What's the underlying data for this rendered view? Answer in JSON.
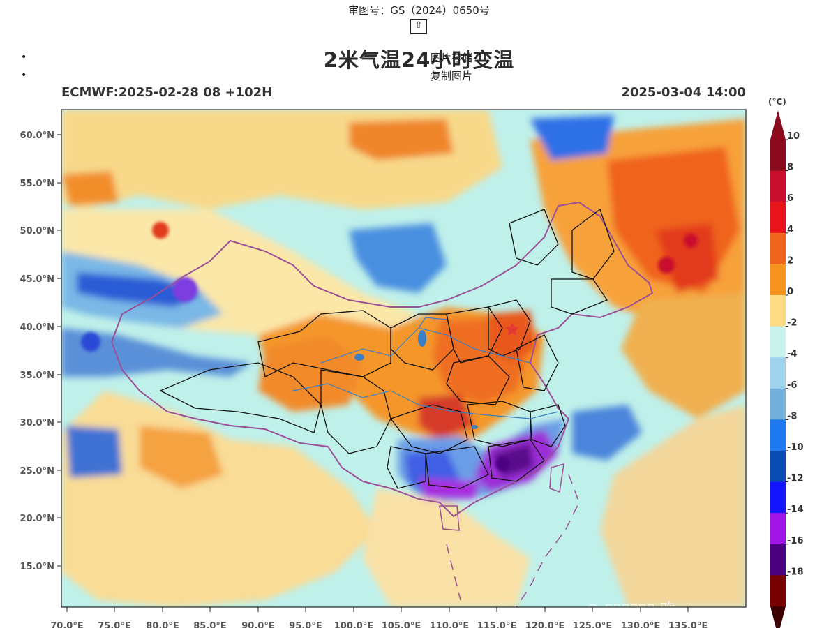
{
  "header": {
    "approval_number": "审图号：GS（2024）0650号",
    "up_icon_glyph": "⇧"
  },
  "menu": {
    "items": [
      {
        "label": "图片存储"
      },
      {
        "label": "复制图片"
      }
    ]
  },
  "map": {
    "title": "2米气温24小时变温",
    "model_run": "ECMWF:2025-02-28 08 +102H",
    "valid_time": "2025-03-04 14:00",
    "lat_labels": [
      "60.0°N",
      "55.0°N",
      "50.0°N",
      "45.0°N",
      "40.0°N",
      "35.0°N",
      "30.0°N",
      "25.0°N",
      "20.0°N",
      "15.0°N"
    ],
    "lon_labels": [
      "70.0°E",
      "75.0°E",
      "80.0°E",
      "85.0°E",
      "90.0°E",
      "95.0°E",
      "100.0°E",
      "105.0°E",
      "110.0°E",
      "115.0°E",
      "120.0°E",
      "125.0°E",
      "130.0°E",
      "135.0°E"
    ],
    "marker_icon": "star-icon",
    "marker_color": "#e53935"
  },
  "colorbar": {
    "unit": "(°C)",
    "bins": [
      {
        "color": "#8b0a1e"
      },
      {
        "color": "#c8102e"
      },
      {
        "color": "#e8141c"
      },
      {
        "color": "#f0641e"
      },
      {
        "color": "#f7941d"
      },
      {
        "color": "#fcdc82"
      },
      {
        "color": "#c9f3ea"
      },
      {
        "color": "#9fd3ee"
      },
      {
        "color": "#74aedb"
      },
      {
        "color": "#1e78f0"
      },
      {
        "color": "#0a4bb4"
      },
      {
        "color": "#1414ff"
      },
      {
        "color": "#a014e6"
      },
      {
        "color": "#4b0082"
      },
      {
        "color": "#780000"
      }
    ],
    "top_tip_color": "#8b0a1e",
    "bottom_tip_color": "#3c0000",
    "tick_labels": [
      "10",
      "8",
      "6",
      "4",
      "2",
      "0",
      "-2",
      "-4",
      "-6",
      "-8",
      "-10",
      "-12",
      "-14",
      "-16",
      "-18"
    ]
  },
  "colors": {
    "province_border": "#111111",
    "country_border": "#9b4f96",
    "rivers": "#3a7fc4"
  }
}
